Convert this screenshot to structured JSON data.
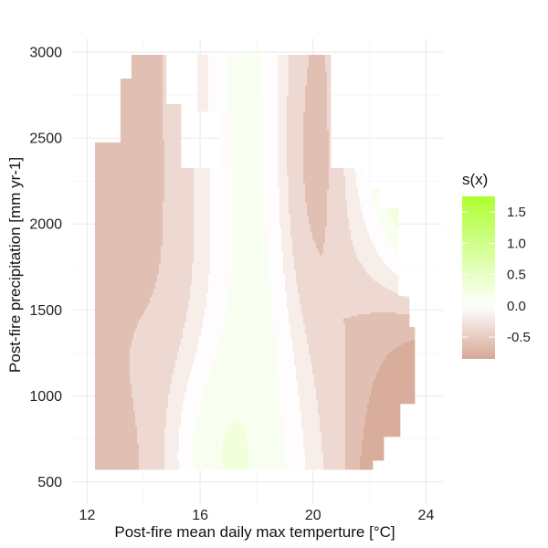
{
  "chart_data": {
    "type": "heatmap",
    "title": "",
    "xlabel": "Post-fire mean daily max temperture [°C]",
    "ylabel": "Post-fire precipitation [mm yr-1]",
    "xlim": [
      11.5,
      24.6
    ],
    "ylim": [
      370,
      3080
    ],
    "x_ticks": [
      12,
      16,
      20,
      24
    ],
    "x_tick_labels": [
      "12",
      "16",
      "20",
      "24"
    ],
    "y_ticks": [
      500,
      1000,
      1500,
      2000,
      2500,
      3000
    ],
    "y_tick_labels": [
      "500",
      "1000",
      "1500",
      "2000",
      "2500",
      "3000"
    ],
    "grid": true,
    "legend": {
      "title": "s(x)",
      "placement": "right",
      "breaks": [
        1.5,
        1.0,
        0.5,
        0.0,
        -0.5
      ],
      "labels": [
        "1.5",
        "1.0",
        "0.5",
        "0.0",
        "-0.5"
      ],
      "limits": [
        -0.85,
        1.75
      ],
      "low_color": "#d6a896",
      "mid_color": "#ffffff",
      "high_color": "#adff2f"
    },
    "data_extent": {
      "x_bounds": [
        12.3,
        23.6
      ],
      "y_bounds": [
        570,
        2980
      ],
      "notes": "filled contour of smooth term s(x) over temperature and precipitation; masked outside observed data"
    },
    "contour_levels": [
      -0.75,
      -0.5,
      -0.25,
      -0.1,
      0.05,
      0.2,
      0.4,
      0.6,
      0.85,
      1.1,
      1.4
    ]
  }
}
